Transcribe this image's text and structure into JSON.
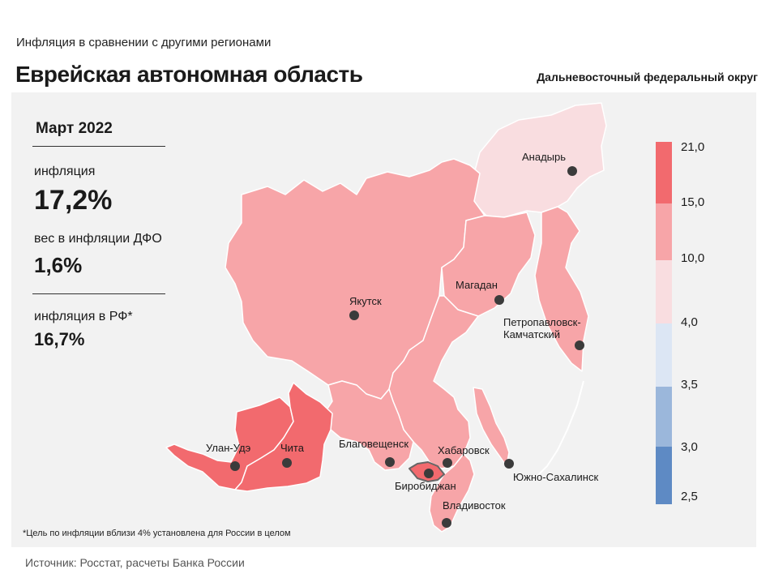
{
  "header": {
    "subtitle": "Инфляция  в сравнении  с другими  регионами",
    "title": "Еврейская автономная область",
    "district": "Дальневосточный федеральный округ"
  },
  "stats": {
    "date": "Март 2022",
    "inflation_label": "инфляция",
    "inflation_value": "17,2%",
    "weight_label": "вес в инфляции  ДФО",
    "weight_value": "1,6%",
    "rf_label": "инфляция  в РФ*",
    "rf_value": "16,7%"
  },
  "cities": {
    "anadyr": "Анадырь",
    "magadan": "Магадан",
    "yakutsk": "Якутск",
    "petropavlovsk_1": "Петропавловск-",
    "petropavlovsk_2": "Камчатский",
    "ulan_ude": "Улан-Удэ",
    "chita": "Чита",
    "blagoveshchensk": "Благовещенск",
    "khabarovsk": "Хабаровск",
    "birobidzhan": "Биробиджан",
    "yuzhno": "Южно-Сахалинск",
    "vladivostok": "Владивосток"
  },
  "legend": {
    "labels": [
      "21,0",
      "15,0",
      "10,0",
      "4,0",
      "3,5",
      "3,0",
      "2,5"
    ],
    "colors": [
      "#f26a6e",
      "#f7a5a8",
      "#f9dde0",
      "#dce6f4",
      "#9bb7db",
      "#5e8ac4"
    ]
  },
  "region_colors": {
    "high": "#f26a6e",
    "mid": "#f7a5a8",
    "low": "#f9dde0"
  },
  "footnote": "*Цель по инфляции вблизи 4% установлена для России в целом",
  "source": "Источник: Росстат, расчеты  Банка  России"
}
